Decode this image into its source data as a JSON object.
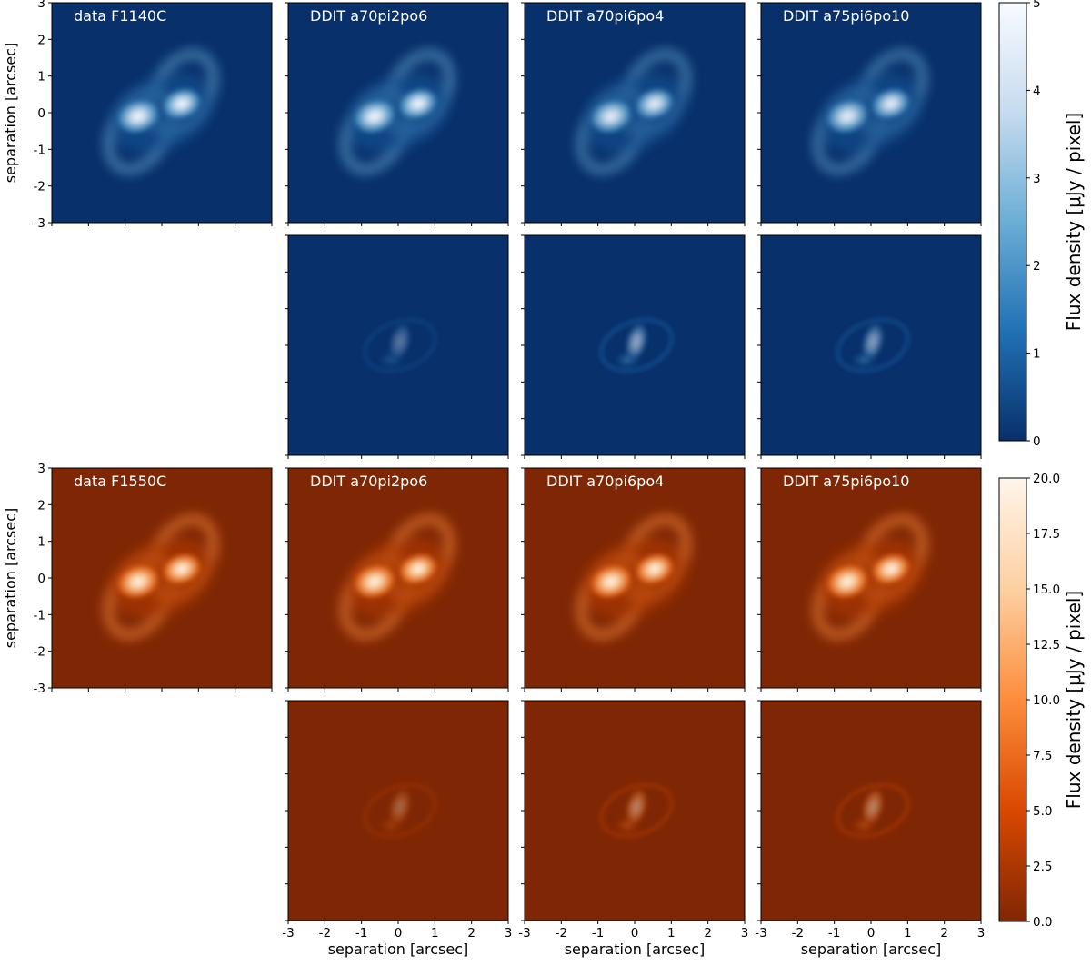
{
  "chart_data": [
    {
      "type": "heatmap",
      "filter": "F1140C",
      "colormap": "blues_r",
      "colors": [
        "#08306b",
        "#2171b5",
        "#6baed6",
        "#c6dbef",
        "#f7fbff"
      ],
      "xlabel": "separation [arcsec]",
      "ylabel": "separation [arcsec]",
      "xlim": [
        -3,
        3
      ],
      "ylim": [
        -3,
        3
      ],
      "ticks": [
        -3,
        -2,
        -1,
        0,
        1,
        2,
        3
      ],
      "colorbar": {
        "label": "Flux density [μJy / pixel]",
        "range": [
          0,
          5
        ],
        "ticks": [
          "0",
          "1",
          "2",
          "3",
          "4",
          "5"
        ]
      },
      "panels": [
        {
          "title": "data F1140C",
          "row": "image",
          "brightness": 1.0
        },
        {
          "title": "DDIT a70pi2po6",
          "row": "image",
          "brightness": 1.0
        },
        {
          "title": "DDIT a70pi6po4",
          "row": "image",
          "brightness": 0.95
        },
        {
          "title": "DDIT a75pi6po10",
          "row": "image",
          "brightness": 0.95
        },
        {
          "title": "",
          "row": "residual",
          "brightness": 0.35
        },
        {
          "title": "",
          "row": "residual",
          "brightness": 0.6
        },
        {
          "title": "",
          "row": "residual",
          "brightness": 0.55
        }
      ]
    },
    {
      "type": "heatmap",
      "filter": "F1550C",
      "colormap": "oranges_r",
      "colors": [
        "#7f2704",
        "#d94801",
        "#fd8d3c",
        "#fdd0a2",
        "#fff5eb"
      ],
      "xlabel": "separation [arcsec]",
      "ylabel": "separation [arcsec]",
      "xlim": [
        -3,
        3
      ],
      "ylim": [
        -3,
        3
      ],
      "ticks": [
        -3,
        -2,
        -1,
        0,
        1,
        2,
        3
      ],
      "colorbar": {
        "label": "Flux density [μJy / pixel]",
        "range": [
          0,
          20
        ],
        "ticks": [
          "0.0",
          "2.5",
          "5.0",
          "7.5",
          "10.0",
          "12.5",
          "15.0",
          "17.5",
          "20.0"
        ]
      },
      "panels": [
        {
          "title": "data F1550C",
          "row": "image",
          "brightness": 1.0
        },
        {
          "title": "DDIT a70pi2po6",
          "row": "image",
          "brightness": 1.0
        },
        {
          "title": "DDIT a70pi6po4",
          "row": "image",
          "brightness": 1.0
        },
        {
          "title": "DDIT a75pi6po10",
          "row": "image",
          "brightness": 1.0
        },
        {
          "title": "",
          "row": "residual",
          "brightness": 0.3
        },
        {
          "title": "",
          "row": "residual",
          "brightness": 0.45
        },
        {
          "title": "",
          "row": "residual",
          "brightness": 0.45
        }
      ]
    }
  ]
}
